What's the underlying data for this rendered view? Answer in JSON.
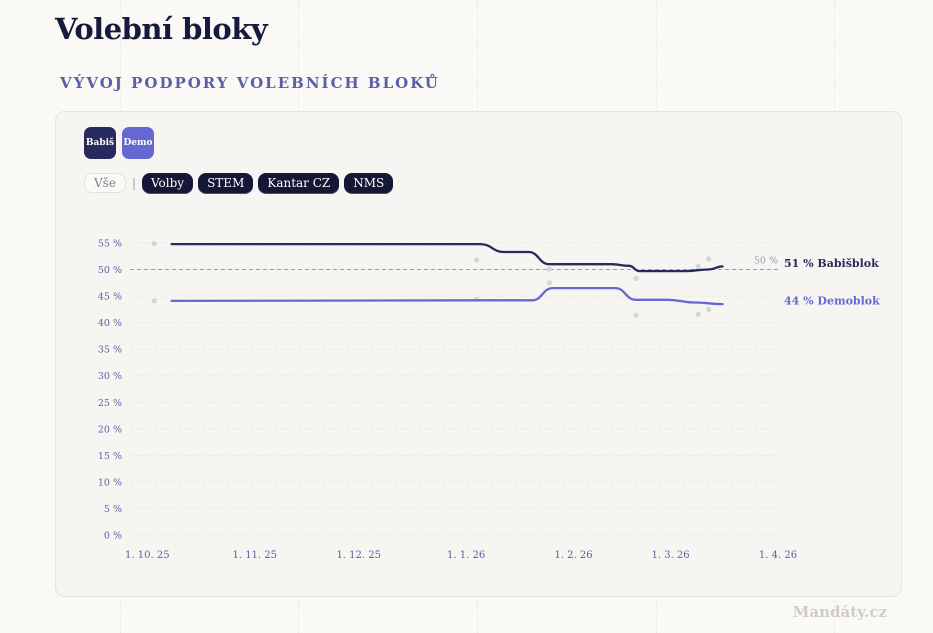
{
  "page": {
    "title": "Volební bloky",
    "watermark": "Mandáty.cz"
  },
  "section": {
    "title": "VÝVOJ PODPORY VOLEBNÍCH BLOKŮ"
  },
  "legend": {
    "babis_label": "Babiš",
    "demo_label": "Demo"
  },
  "filters": {
    "all": "Vše",
    "separator": "|",
    "sources": [
      "Volby",
      "STEM",
      "Kantar CZ",
      "NMS"
    ]
  },
  "colors": {
    "babis": "#272a5c",
    "demo": "#6468d0",
    "grid": "#e8e6e0",
    "axis_text": "#5a5fa8",
    "reference": "#9a9cb0",
    "dots": "#d4d3de"
  },
  "chart_data": {
    "type": "line",
    "xlabel": "",
    "ylabel": "",
    "x_range": [
      "2025-09-26",
      "2026-04-01"
    ],
    "x_ticks": [
      {
        "date": "2025-10-01",
        "label": "1. 10. 25"
      },
      {
        "date": "2025-11-01",
        "label": "1. 11. 25"
      },
      {
        "date": "2025-12-01",
        "label": "1. 12. 25"
      },
      {
        "date": "2026-01-01",
        "label": "1. 1. 26"
      },
      {
        "date": "2026-02-01",
        "label": "1. 2. 26"
      },
      {
        "date": "2026-03-01",
        "label": "1. 3. 26"
      },
      {
        "date": "2026-04-01",
        "label": "1. 4. 26"
      }
    ],
    "ylim": [
      0,
      55
    ],
    "y_ticks": [
      0,
      5,
      10,
      15,
      20,
      25,
      30,
      35,
      40,
      45,
      50,
      55
    ],
    "y_tick_suffix": " %",
    "grid": true,
    "reference_line": {
      "value": 50,
      "label": "50 %"
    },
    "series": [
      {
        "name": "Babišblok",
        "end_label": "51 % Babišblok",
        "color": "#272a5c",
        "points": [
          {
            "x": "2025-10-08",
            "y": 54.8
          },
          {
            "x": "2026-01-05",
            "y": 54.8
          },
          {
            "x": "2026-01-12",
            "y": 53.3
          },
          {
            "x": "2026-01-19",
            "y": 53.3
          },
          {
            "x": "2026-01-25",
            "y": 51.0
          },
          {
            "x": "2026-02-12",
            "y": 51.0
          },
          {
            "x": "2026-02-17",
            "y": 50.7
          },
          {
            "x": "2026-02-20",
            "y": 49.7
          },
          {
            "x": "2026-03-05",
            "y": 49.7
          },
          {
            "x": "2026-03-12",
            "y": 50.0
          },
          {
            "x": "2026-03-16",
            "y": 50.6
          }
        ]
      },
      {
        "name": "Demoblok",
        "end_label": "44 % Demoblok",
        "color": "#6468d0",
        "points": [
          {
            "x": "2025-10-08",
            "y": 44.1
          },
          {
            "x": "2026-01-08",
            "y": 44.2
          },
          {
            "x": "2026-01-20",
            "y": 44.2
          },
          {
            "x": "2026-01-26",
            "y": 46.5
          },
          {
            "x": "2026-02-13",
            "y": 46.5
          },
          {
            "x": "2026-02-19",
            "y": 44.3
          },
          {
            "x": "2026-02-28",
            "y": 44.3
          },
          {
            "x": "2026-03-08",
            "y": 43.8
          },
          {
            "x": "2026-03-16",
            "y": 43.5
          }
        ]
      }
    ],
    "polls": [
      {
        "x": "2025-10-03",
        "y": 54.9
      },
      {
        "x": "2025-10-03",
        "y": 44.1
      },
      {
        "x": "2026-01-04",
        "y": 51.8
      },
      {
        "x": "2026-01-04",
        "y": 44.4
      },
      {
        "x": "2026-01-25",
        "y": 50.1
      },
      {
        "x": "2026-01-25",
        "y": 47.5
      },
      {
        "x": "2026-02-19",
        "y": 48.3
      },
      {
        "x": "2026-02-19",
        "y": 41.4
      },
      {
        "x": "2026-03-09",
        "y": 50.6
      },
      {
        "x": "2026-03-09",
        "y": 41.6
      },
      {
        "x": "2026-03-12",
        "y": 52.0
      },
      {
        "x": "2026-03-12",
        "y": 42.5
      }
    ]
  }
}
